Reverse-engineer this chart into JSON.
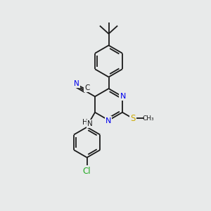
{
  "background_color": "#e8eaea",
  "bond_color": "#1a1a1a",
  "atom_colors": {
    "N": "#0000ee",
    "C": "#1a1a1a",
    "S": "#ccaa00",
    "Cl": "#22aa22",
    "H": "#1a1a1a"
  },
  "figsize": [
    3.0,
    3.0
  ],
  "dpi": 100,
  "lw": 1.3
}
